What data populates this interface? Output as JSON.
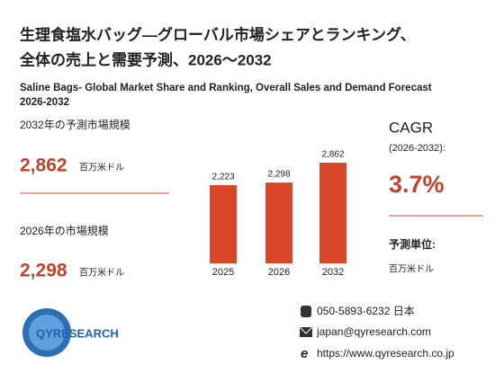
{
  "header": {
    "title_lines": [
      "生理食塩水バッグ—グローバル市場シェアとランキング、",
      "全体の売上と需要予測、2026～2032"
    ],
    "subtitle_lines": [
      "Saline Bags- Global Market Share and Ranking, Overall Sales and Demand Forecast",
      "2026-2032"
    ]
  },
  "left": {
    "forecast_label": "2032年の予測市場規模",
    "forecast_value": "2,862",
    "forecast_unit": "百万米ドル",
    "current_label": "2026年の市場規模",
    "current_value": "2,298",
    "current_unit": "百万米ドル"
  },
  "right": {
    "cagr_label": "CAGR",
    "cagr_period": "(2026-2032):",
    "cagr_value": "3.7%",
    "unit_label": "予測単位:",
    "unit_value": "百万米ドル"
  },
  "chart_data": {
    "type": "bar",
    "categories": [
      "2025",
      "2026",
      "2032"
    ],
    "values": [
      2223,
      2298,
      2862
    ],
    "value_labels": [
      "2,223",
      "2,298",
      "2,862"
    ],
    "color": "#d9472b"
  },
  "footer": {
    "logo": "QYRESEARCH",
    "phone": "050-5893-6232 日本",
    "email": "japan@qyresearch.com",
    "web": "https://www.qyresearch.co.jp"
  }
}
